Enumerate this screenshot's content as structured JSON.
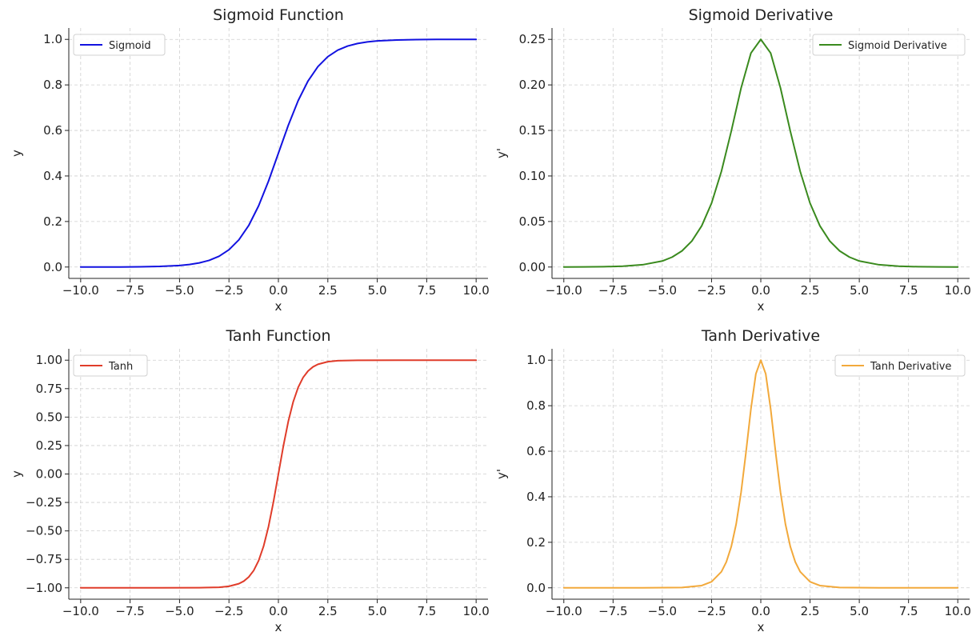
{
  "figure": {
    "layout": "2x2 grid"
  },
  "chart_data": [
    {
      "type": "line",
      "title": "Sigmoid Function",
      "xlabel": "x",
      "ylabel": "y",
      "xlim": [
        -10.6,
        10.6
      ],
      "ylim": [
        -0.05,
        1.05
      ],
      "xticks": [
        -10.0,
        -7.5,
        -5.0,
        -2.5,
        0.0,
        2.5,
        5.0,
        7.5,
        10.0
      ],
      "xtick_labels": [
        "−10.0",
        "−7.5",
        "−5.0",
        "−2.5",
        "0.0",
        "2.5",
        "5.0",
        "7.5",
        "10.0"
      ],
      "yticks": [
        0.0,
        0.2,
        0.4,
        0.6,
        0.8,
        1.0
      ],
      "ytick_labels": [
        "0.0",
        "0.2",
        "0.4",
        "0.6",
        "0.8",
        "1.0"
      ],
      "grid": true,
      "legend_position": "upper-left",
      "series": [
        {
          "name": "Sigmoid",
          "color": "#1212e0",
          "x": [
            -10,
            -9,
            -8,
            -7,
            -6,
            -5,
            -4.5,
            -4,
            -3.5,
            -3,
            -2.5,
            -2,
            -1.5,
            -1,
            -0.5,
            0,
            0.5,
            1,
            1.5,
            2,
            2.5,
            3,
            3.5,
            4,
            4.5,
            5,
            6,
            7,
            8,
            9,
            10
          ],
          "values": [
            0.0,
            0.0001,
            0.0003,
            0.0009,
            0.0025,
            0.0067,
            0.011,
            0.018,
            0.0293,
            0.0474,
            0.0759,
            0.1192,
            0.1824,
            0.2689,
            0.3775,
            0.5,
            0.6225,
            0.7311,
            0.8176,
            0.8808,
            0.9241,
            0.9526,
            0.9707,
            0.982,
            0.989,
            0.9933,
            0.9975,
            0.9991,
            0.9997,
            0.9999,
            1.0
          ]
        }
      ]
    },
    {
      "type": "line",
      "title": "Sigmoid Derivative",
      "xlabel": "x",
      "ylabel": "y'",
      "xlim": [
        -10.6,
        10.6
      ],
      "ylim": [
        -0.0125,
        0.2625
      ],
      "xticks": [
        -10.0,
        -7.5,
        -5.0,
        -2.5,
        0.0,
        2.5,
        5.0,
        7.5,
        10.0
      ],
      "xtick_labels": [
        "−10.0",
        "−7.5",
        "−5.0",
        "−2.5",
        "0.0",
        "2.5",
        "5.0",
        "7.5",
        "10.0"
      ],
      "yticks": [
        0.0,
        0.05,
        0.1,
        0.15,
        0.2,
        0.25
      ],
      "ytick_labels": [
        "0.00",
        "0.05",
        "0.10",
        "0.15",
        "0.20",
        "0.25"
      ],
      "grid": true,
      "legend_position": "upper-right",
      "series": [
        {
          "name": "Sigmoid Derivative",
          "color": "#3a8a1e",
          "x": [
            -10,
            -9,
            -8,
            -7,
            -6,
            -5,
            -4.5,
            -4,
            -3.5,
            -3,
            -2.5,
            -2,
            -1.5,
            -1,
            -0.5,
            0,
            0.5,
            1,
            1.5,
            2,
            2.5,
            3,
            3.5,
            4,
            4.5,
            5,
            6,
            7,
            8,
            9,
            10
          ],
          "values": [
            0.0,
            0.0001,
            0.0003,
            0.0009,
            0.0025,
            0.0066,
            0.0109,
            0.0177,
            0.0285,
            0.0452,
            0.0701,
            0.105,
            0.1491,
            0.1966,
            0.235,
            0.25,
            0.235,
            0.1966,
            0.1491,
            0.105,
            0.0701,
            0.0452,
            0.0285,
            0.0177,
            0.0109,
            0.0066,
            0.0025,
            0.0009,
            0.0003,
            0.0001,
            0.0
          ]
        }
      ]
    },
    {
      "type": "line",
      "title": "Tanh Function",
      "xlabel": "x",
      "ylabel": "y",
      "xlim": [
        -10.6,
        10.6
      ],
      "ylim": [
        -1.1,
        1.1
      ],
      "xticks": [
        -10.0,
        -7.5,
        -5.0,
        -2.5,
        0.0,
        2.5,
        5.0,
        7.5,
        10.0
      ],
      "xtick_labels": [
        "−10.0",
        "−7.5",
        "−5.0",
        "−2.5",
        "0.0",
        "2.5",
        "5.0",
        "7.5",
        "10.0"
      ],
      "yticks": [
        -1.0,
        -0.75,
        -0.5,
        -0.25,
        0.0,
        0.25,
        0.5,
        0.75,
        1.0
      ],
      "ytick_labels": [
        "−1.00",
        "−0.75",
        "−0.50",
        "−0.25",
        "0.00",
        "0.25",
        "0.50",
        "0.75",
        "1.00"
      ],
      "grid": true,
      "legend_position": "upper-left",
      "series": [
        {
          "name": "Tanh",
          "color": "#e03c2a",
          "x": [
            -10,
            -8,
            -6,
            -4,
            -3,
            -2.5,
            -2,
            -1.75,
            -1.5,
            -1.25,
            -1,
            -0.75,
            -0.5,
            -0.25,
            0,
            0.25,
            0.5,
            0.75,
            1,
            1.25,
            1.5,
            1.75,
            2,
            2.5,
            3,
            4,
            6,
            8,
            10
          ],
          "values": [
            -1.0,
            -1.0,
            -1.0,
            -0.9993,
            -0.9951,
            -0.9866,
            -0.964,
            -0.9414,
            -0.9051,
            -0.8483,
            -0.7616,
            -0.6351,
            -0.4621,
            -0.2449,
            0.0,
            0.2449,
            0.4621,
            0.6351,
            0.7616,
            0.8483,
            0.9051,
            0.9414,
            0.964,
            0.9866,
            0.9951,
            0.9993,
            1.0,
            1.0,
            1.0
          ]
        }
      ]
    },
    {
      "type": "line",
      "title": "Tanh Derivative",
      "xlabel": "x",
      "ylabel": "y'",
      "xlim": [
        -10.6,
        10.6
      ],
      "ylim": [
        -0.05,
        1.05
      ],
      "xticks": [
        -10.0,
        -7.5,
        -5.0,
        -2.5,
        0.0,
        2.5,
        5.0,
        7.5,
        10.0
      ],
      "xtick_labels": [
        "−10.0",
        "−7.5",
        "−5.0",
        "−2.5",
        "0.0",
        "2.5",
        "5.0",
        "7.5",
        "10.0"
      ],
      "yticks": [
        0.0,
        0.2,
        0.4,
        0.6,
        0.8,
        1.0
      ],
      "ytick_labels": [
        "0.0",
        "0.2",
        "0.4",
        "0.6",
        "0.8",
        "1.0"
      ],
      "grid": true,
      "legend_position": "upper-right",
      "series": [
        {
          "name": "Tanh Derivative",
          "color": "#f2a93b",
          "x": [
            -10,
            -8,
            -6,
            -4,
            -3,
            -2.5,
            -2,
            -1.75,
            -1.5,
            -1.25,
            -1,
            -0.75,
            -0.5,
            -0.25,
            0,
            0.25,
            0.5,
            0.75,
            1,
            1.25,
            1.5,
            1.75,
            2,
            2.5,
            3,
            4,
            6,
            8,
            10
          ],
          "values": [
            0.0,
            0.0,
            0.0,
            0.0013,
            0.0099,
            0.0266,
            0.0707,
            0.1138,
            0.1807,
            0.2804,
            0.42,
            0.5966,
            0.7864,
            0.94,
            1.0,
            0.94,
            0.7864,
            0.5966,
            0.42,
            0.2804,
            0.1807,
            0.1138,
            0.0707,
            0.0266,
            0.0099,
            0.0013,
            0.0,
            0.0,
            0.0
          ]
        }
      ]
    }
  ]
}
